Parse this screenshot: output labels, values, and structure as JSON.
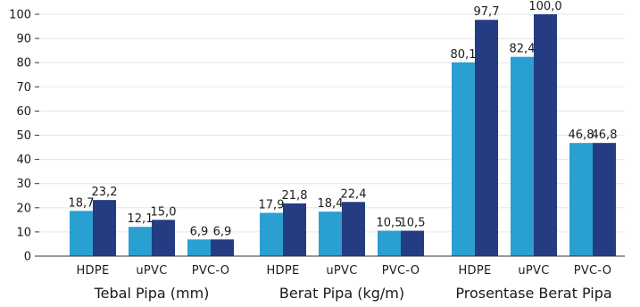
{
  "chart_data": {
    "type": "bar",
    "ylim": [
      0,
      100
    ],
    "yticks": [
      0,
      10,
      20,
      30,
      40,
      50,
      60,
      70,
      80,
      90,
      100
    ],
    "grid": true,
    "groups": [
      {
        "label": "Tebal Pipa (mm)",
        "categories": [
          "HDPE",
          "uPVC",
          "PVC-O"
        ],
        "values_a": [
          18.7,
          12.1,
          6.9
        ],
        "values_b": [
          23.2,
          15.0,
          6.9
        ],
        "labels_a": [
          "18,7",
          "12,1",
          "6,9"
        ],
        "labels_b": [
          "23,2",
          "15,0",
          "6,9"
        ]
      },
      {
        "label": "Berat Pipa (kg/m)",
        "categories": [
          "HDPE",
          "uPVC",
          "PVC-O"
        ],
        "values_a": [
          17.9,
          18.4,
          10.5
        ],
        "values_b": [
          21.8,
          22.4,
          10.5
        ],
        "labels_a": [
          "17,9",
          "18,4",
          "10,5"
        ],
        "labels_b": [
          "21,8",
          "22,4",
          "10,5"
        ]
      },
      {
        "label": "Prosentase Berat Pipa",
        "categories": [
          "HDPE",
          "uPVC",
          "PVC-O"
        ],
        "values_a": [
          80.1,
          82.4,
          46.8
        ],
        "values_b": [
          97.7,
          100.0,
          46.8
        ],
        "labels_a": [
          "80,1",
          "82,4",
          "46,8"
        ],
        "labels_b": [
          "97,7",
          "100,0",
          "46,8"
        ]
      }
    ],
    "colors": {
      "series_a": "#2a9fd1",
      "series_b": "#243c82"
    }
  }
}
